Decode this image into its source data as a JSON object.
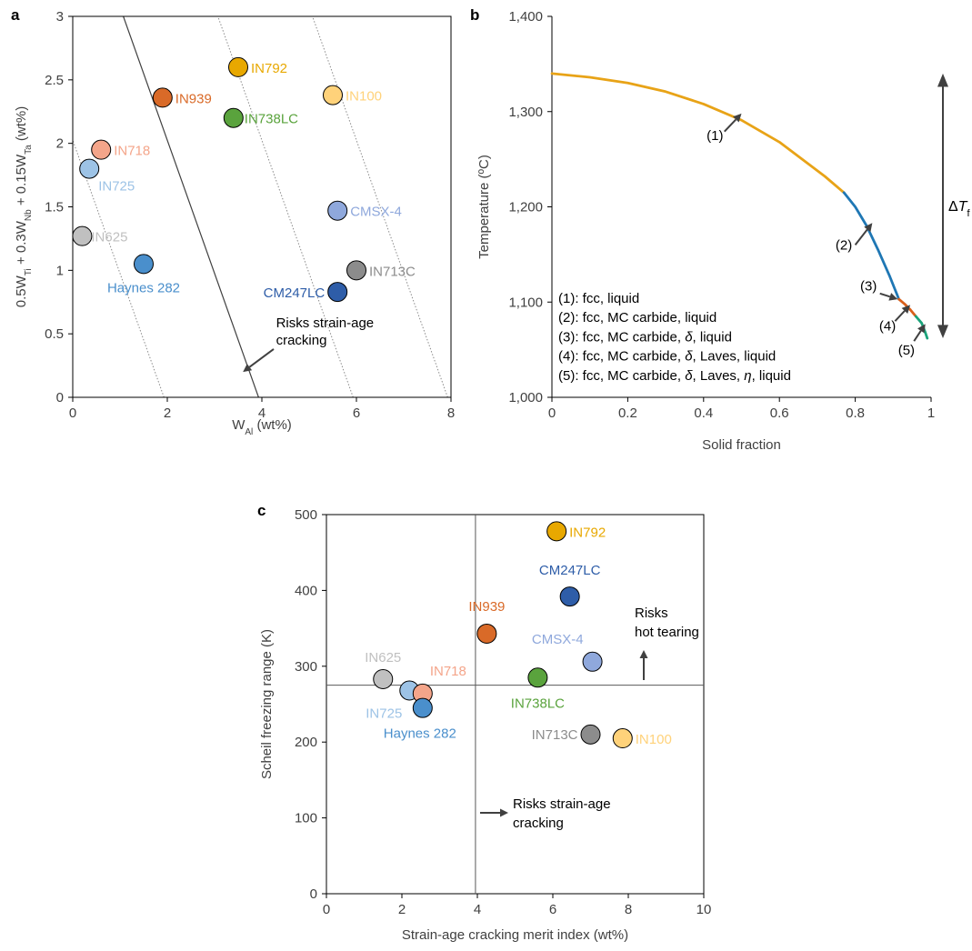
{
  "chart_data": [
    {
      "panel": "a",
      "type": "scatter",
      "xlabel": "W_Al (wt%)",
      "ylabel": "0.5W_Ti + 0.3W_Nb + 0.15W_Ta (wt%)",
      "xlim": [
        0,
        8
      ],
      "ylim": [
        0,
        3
      ],
      "xticks": [
        0,
        2,
        4,
        6,
        8
      ],
      "yticks": [
        0,
        0.5,
        1,
        1.5,
        2,
        2.5,
        3
      ],
      "grid": false,
      "points": [
        {
          "label": "IN792",
          "x": 3.5,
          "y": 2.6,
          "color": "#e8a800"
        },
        {
          "label": "IN939",
          "x": 1.9,
          "y": 2.36,
          "color": "#d96a28"
        },
        {
          "label": "IN100",
          "x": 5.5,
          "y": 2.38,
          "color": "#ffd27a"
        },
        {
          "label": "IN738LC",
          "x": 3.4,
          "y": 2.2,
          "color": "#5aa33d"
        },
        {
          "label": "IN718",
          "x": 0.6,
          "y": 1.95,
          "color": "#f4a58a"
        },
        {
          "label": "IN725",
          "x": 0.35,
          "y": 1.8,
          "color": "#9dc3e6"
        },
        {
          "label": "CMSX-4",
          "x": 5.6,
          "y": 1.47,
          "color": "#8fa8dc"
        },
        {
          "label": "IN625",
          "x": 0.2,
          "y": 1.27,
          "color": "#c0c0c0"
        },
        {
          "label": "Haynes 282",
          "x": 1.5,
          "y": 1.05,
          "color": "#4a8fcc"
        },
        {
          "label": "IN713C",
          "x": 6.0,
          "y": 1.0,
          "color": "#8c8c8c"
        },
        {
          "label": "CM247LC",
          "x": 5.6,
          "y": 0.83,
          "color": "#2e5da8"
        }
      ],
      "boundary_lines": [
        {
          "style": "solid",
          "x_at_y0": 3.93,
          "x_at_y3": 1.07
        },
        {
          "style": "dotted",
          "x_at_y0": 1.93,
          "x_at_y3": -0.93
        },
        {
          "style": "dotted",
          "x_at_y0": 5.93,
          "x_at_y3": 3.07
        },
        {
          "style": "dotted",
          "x_at_y0": 7.93,
          "x_at_y3": 5.07
        }
      ],
      "annotation": "Risks strain-age\ncracking"
    },
    {
      "panel": "b",
      "type": "line",
      "xlabel": "Solid fraction",
      "ylabel": "Temperature (ºC)",
      "xlim": [
        0,
        1
      ],
      "ylim": [
        1000,
        1400
      ],
      "xticks": [
        0,
        0.2,
        0.4,
        0.6,
        0.8,
        1
      ],
      "xtick_labels": [
        "0",
        "0.2",
        "0.4",
        "0.6",
        "0.8",
        "1"
      ],
      "yticks": [
        1000,
        1100,
        1200,
        1300,
        1400
      ],
      "ytick_labels": [
        "1,000",
        "1,100",
        "1,200",
        "1,300",
        "1,400"
      ],
      "grid": false,
      "series": [
        {
          "name": "(1)",
          "color": "#e8a317",
          "x": [
            0,
            0.1,
            0.2,
            0.3,
            0.4,
            0.5,
            0.6,
            0.66,
            0.72,
            0.77
          ],
          "y": [
            1340,
            1336,
            1330,
            1321,
            1308,
            1291,
            1268,
            1250,
            1232,
            1215
          ]
        },
        {
          "name": "(2)",
          "color": "#1f77b4",
          "x": [
            0.77,
            0.8,
            0.83,
            0.86,
            0.89,
            0.915
          ],
          "y": [
            1215,
            1200,
            1180,
            1155,
            1128,
            1103
          ]
        },
        {
          "name": "(3)",
          "color": "#d95f1a",
          "x": [
            0.915,
            0.93,
            0.945
          ],
          "y": [
            1103,
            1098,
            1092
          ]
        },
        {
          "name": "(4)",
          "color": "#d95f1a",
          "x": [
            0.945,
            0.96
          ],
          "y": [
            1092,
            1085
          ]
        },
        {
          "name": "(5)",
          "color": "#1aa37a",
          "x": [
            0.96,
            0.975,
            0.985,
            0.99
          ],
          "y": [
            1085,
            1078,
            1068,
            1062
          ]
        }
      ],
      "legend_lines": [
        "(1): fcc, liquid",
        "(2): fcc, MC carbide, liquid",
        "(3): fcc, MC carbide, δ, liquid",
        "(4): fcc, MC carbide, δ, Laves, liquid",
        "(5): fcc, MC carbide, δ, Laves, η, liquid"
      ],
      "delta_label": "ΔT_f"
    },
    {
      "panel": "c",
      "type": "scatter",
      "xlabel": "Strain-age cracking merit index (wt%)",
      "ylabel": "Scheil freezing range (K)",
      "xlim": [
        0,
        10
      ],
      "ylim": [
        0,
        500
      ],
      "xticks": [
        0,
        2,
        4,
        6,
        8,
        10
      ],
      "yticks": [
        0,
        100,
        200,
        300,
        400,
        500
      ],
      "grid": false,
      "threshold_x": 3.95,
      "threshold_y": 275,
      "points": [
        {
          "label": "IN792",
          "x": 6.1,
          "y": 478,
          "color": "#e8a800"
        },
        {
          "label": "CM247LC",
          "x": 6.45,
          "y": 392,
          "color": "#2e5da8"
        },
        {
          "label": "IN939",
          "x": 4.25,
          "y": 343,
          "color": "#d96a28"
        },
        {
          "label": "CMSX-4",
          "x": 7.05,
          "y": 306,
          "color": "#8fa8dc"
        },
        {
          "label": "IN738LC",
          "x": 5.6,
          "y": 285,
          "color": "#5aa33d"
        },
        {
          "label": "IN625",
          "x": 1.5,
          "y": 283,
          "color": "#c0c0c0"
        },
        {
          "label": "IN725",
          "x": 2.2,
          "y": 268,
          "color": "#9dc3e6"
        },
        {
          "label": "IN718",
          "x": 2.55,
          "y": 264,
          "color": "#f4a58a"
        },
        {
          "label": "Haynes 282",
          "x": 2.55,
          "y": 245,
          "color": "#4a8fcc"
        },
        {
          "label": "IN713C",
          "x": 7.0,
          "y": 210,
          "color": "#8c8c8c"
        },
        {
          "label": "IN100",
          "x": 7.85,
          "y": 205,
          "color": "#ffd27a"
        }
      ],
      "annotations": [
        "Risks strain-age\ncracking",
        "Risks\nhot tearing"
      ]
    }
  ]
}
